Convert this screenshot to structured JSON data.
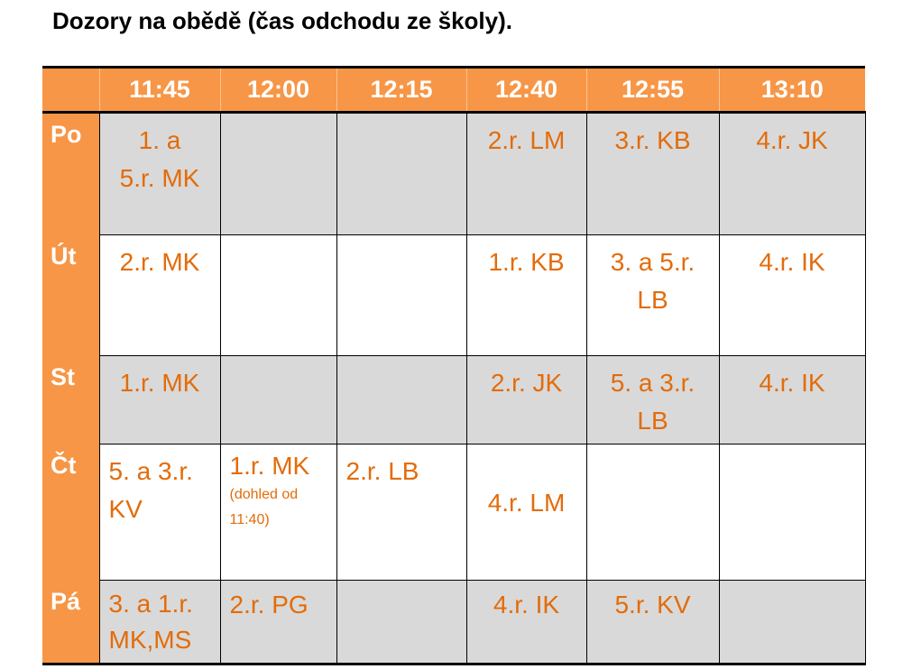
{
  "title": "Dozory na obědě (čas odchodu ze školy).",
  "times": [
    "11:45",
    "12:00",
    "12:15",
    "12:40",
    "12:55",
    "13:10"
  ],
  "rows": [
    {
      "day": "Po",
      "cells": [
        "1. a 5.r. MK",
        "",
        "",
        "2.r. LM",
        "3.r. KB",
        "4.r. JK"
      ]
    },
    {
      "day": "Út",
      "cells": [
        "2.r. MK",
        "",
        "",
        "1.r. KB",
        "3. a 5.r. LB",
        "4.r. IK"
      ]
    },
    {
      "day": "St",
      "cells": [
        "1.r. MK",
        "",
        "",
        "2.r. JK",
        "5. a 3.r. LB",
        "4.r. IK"
      ]
    },
    {
      "day": "Čt",
      "cells": [
        "5. a 3.r. KV",
        "1.r. MK",
        "2.r. LB",
        "4.r. LM",
        "",
        ""
      ],
      "note": "(dohled od 11:40)"
    },
    {
      "day": "Pá",
      "cells": [
        "3. a 1.r. MK,MS",
        "2.r. PG",
        "",
        "4.r. IK",
        "5.r. KV",
        ""
      ]
    }
  ],
  "colors": {
    "header": "#f79646",
    "cell_text": "#e36c09",
    "gray_row": "#d9d9d9"
  }
}
